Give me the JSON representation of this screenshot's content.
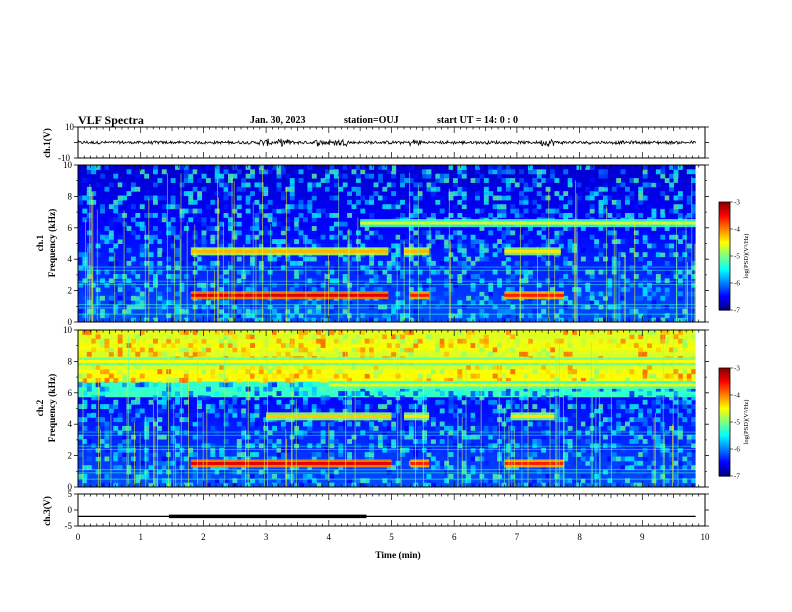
{
  "header": {
    "title": "VLF Spectra",
    "date": "Jan. 30, 2023",
    "station": "station=OUJ",
    "start": "start  UT =  14: 0  : 0"
  },
  "chart_data": [
    {
      "type": "line",
      "name": "ch1-waveform",
      "ylabel": "ch.1(V)",
      "ylim": [
        -10,
        10
      ],
      "y_ticks": [
        "10",
        "-10"
      ],
      "x": [
        0,
        10
      ],
      "baseline": 0,
      "typical_amplitude": 1,
      "bursts_min": [
        3.0,
        3.3,
        3.9,
        4.2,
        5.4,
        7.5
      ]
    },
    {
      "type": "heatmap",
      "name": "ch1-spectrogram",
      "xlabel": "",
      "ylabel": "ch.1\nFrequency (kHz)",
      "xlim": [
        0,
        10
      ],
      "ylim": [
        0,
        10
      ],
      "y_ticks": [
        "0",
        "2",
        "4",
        "6",
        "8",
        "10"
      ],
      "data_end_min": 9.85,
      "colorbar": {
        "label": "log(PSD)(V²/Hz)",
        "range": [
          -7,
          -3
        ],
        "ticks": [
          "-3",
          "-4",
          "-5",
          "-6",
          "-7"
        ]
      },
      "bands": [
        {
          "f_khz": 6.3,
          "from_min": 4.5,
          "to_min": 9.85,
          "level": -4.7
        },
        {
          "f_khz": 4.5,
          "from_min": 1.8,
          "to_min": 4.95,
          "level": -4.2
        },
        {
          "f_khz": 4.5,
          "from_min": 5.2,
          "to_min": 5.6,
          "level": -4.2
        },
        {
          "f_khz": 4.5,
          "from_min": 6.8,
          "to_min": 7.7,
          "level": -4.4
        },
        {
          "f_khz": 1.7,
          "from_min": 1.8,
          "to_min": 4.95,
          "level": -3.4
        },
        {
          "f_khz": 1.7,
          "from_min": 5.3,
          "to_min": 5.6,
          "level": -3.6
        },
        {
          "f_khz": 1.7,
          "from_min": 6.8,
          "to_min": 7.75,
          "level": -3.6
        }
      ]
    },
    {
      "type": "heatmap",
      "name": "ch2-spectrogram",
      "xlabel": "",
      "ylabel": "ch.2\nFrequency (kHz)",
      "xlim": [
        0,
        10
      ],
      "ylim": [
        0,
        10
      ],
      "y_ticks": [
        "0",
        "2",
        "4",
        "6",
        "8",
        "10"
      ],
      "data_end_min": 9.85,
      "colorbar": {
        "label": "log(PSD)(V²/Hz)",
        "range": [
          -7,
          -3
        ],
        "ticks": [
          "-3",
          "-4",
          "-5",
          "-6",
          "-7"
        ]
      },
      "bands": [
        {
          "f_khz": 8.0,
          "from_min": 0,
          "to_min": 9.85,
          "level": -4.5
        },
        {
          "f_khz": 6.5,
          "from_min": 4.0,
          "to_min": 9.85,
          "level": -4.6
        },
        {
          "f_khz": 4.5,
          "from_min": 3.0,
          "to_min": 5.0,
          "level": -4.3
        },
        {
          "f_khz": 4.5,
          "from_min": 5.2,
          "to_min": 5.6,
          "level": -4.4
        },
        {
          "f_khz": 4.5,
          "from_min": 6.9,
          "to_min": 7.6,
          "level": -4.4
        },
        {
          "f_khz": 1.5,
          "from_min": 1.8,
          "to_min": 5.0,
          "level": -3.4
        },
        {
          "f_khz": 1.5,
          "from_min": 5.3,
          "to_min": 5.6,
          "level": -3.6
        },
        {
          "f_khz": 1.5,
          "from_min": 6.8,
          "to_min": 7.75,
          "level": -3.6
        }
      ]
    },
    {
      "type": "line",
      "name": "ch3-trace",
      "xlabel": "Time (min)",
      "ylabel": "ch.3(V)",
      "xlim": [
        0,
        10
      ],
      "ylim": [
        -5,
        5
      ],
      "y_ticks": [
        "5",
        "0",
        "-5"
      ],
      "x_ticks": [
        "0",
        "1",
        "2",
        "3",
        "4",
        "5",
        "6",
        "7",
        "8",
        "9",
        "10"
      ],
      "level_v": -2,
      "x_end_min": 9.85,
      "thick_segment_min": [
        1.45,
        4.6
      ]
    }
  ]
}
